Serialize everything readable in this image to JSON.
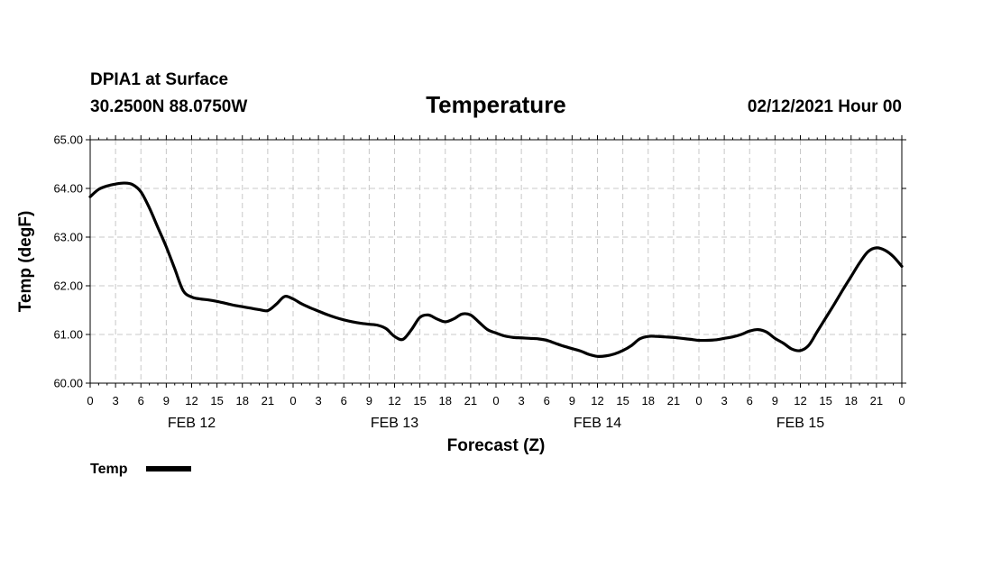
{
  "header": {
    "station": "DPIA1 at Surface",
    "coords": "30.2500N 88.0750W",
    "title": "Temperature",
    "datetime": "02/12/2021 Hour 00"
  },
  "chart_data": {
    "type": "line",
    "title": "Temperature",
    "xlabel": "Forecast (Z)",
    "ylabel": "Temp (degF)",
    "ylim": [
      60.0,
      65.0
    ],
    "xlim": [
      0,
      96
    ],
    "y_ticks": [
      "60.00",
      "61.00",
      "62.00",
      "63.00",
      "64.00",
      "65.00"
    ],
    "x_ticks": [
      "0",
      "3",
      "6",
      "9",
      "12",
      "15",
      "18",
      "21",
      "0",
      "3",
      "6",
      "9",
      "12",
      "15",
      "18",
      "21",
      "0",
      "3",
      "6",
      "9",
      "12",
      "15",
      "18",
      "21",
      "0",
      "3",
      "6",
      "9",
      "12",
      "15",
      "18",
      "21",
      "0"
    ],
    "day_labels": [
      {
        "label": "FEB 12",
        "hour": 12
      },
      {
        "label": "FEB 13",
        "hour": 36
      },
      {
        "label": "FEB 14",
        "hour": 60
      },
      {
        "label": "FEB 15",
        "hour": 84
      }
    ],
    "grid": true,
    "legend": {
      "position": "bottom-left",
      "label": "Temp"
    },
    "series": [
      {
        "name": "Temp",
        "color": "#000000",
        "x": [
          0,
          1,
          2,
          3,
          4,
          5,
          6,
          7,
          8,
          9,
          10,
          11,
          12,
          13,
          14,
          15,
          16,
          17,
          18,
          19,
          20,
          21,
          22,
          23,
          24,
          25,
          26,
          27,
          28,
          29,
          30,
          31,
          32,
          33,
          34,
          35,
          36,
          37,
          38,
          39,
          40,
          41,
          42,
          43,
          44,
          45,
          46,
          47,
          48,
          49,
          50,
          51,
          52,
          53,
          54,
          55,
          56,
          57,
          58,
          59,
          60,
          61,
          62,
          63,
          64,
          65,
          66,
          67,
          68,
          69,
          70,
          71,
          72,
          73,
          74,
          75,
          76,
          77,
          78,
          79,
          80,
          81,
          82,
          83,
          84,
          85,
          86,
          87,
          88,
          89,
          90,
          91,
          92,
          93,
          94,
          95,
          96
        ],
        "values": [
          63.83,
          63.98,
          64.05,
          64.09,
          64.11,
          64.08,
          63.93,
          63.6,
          63.2,
          62.8,
          62.35,
          61.9,
          61.77,
          61.73,
          61.71,
          61.68,
          61.64,
          61.6,
          61.57,
          61.54,
          61.51,
          61.49,
          61.62,
          61.78,
          61.73,
          61.63,
          61.55,
          61.48,
          61.41,
          61.35,
          61.3,
          61.26,
          61.23,
          61.21,
          61.19,
          61.12,
          60.96,
          60.9,
          61.1,
          61.35,
          61.4,
          61.32,
          61.26,
          61.32,
          61.42,
          61.4,
          61.25,
          61.1,
          61.03,
          60.97,
          60.94,
          60.93,
          60.92,
          60.91,
          60.88,
          60.82,
          60.76,
          60.71,
          60.66,
          60.59,
          60.55,
          60.56,
          60.6,
          60.67,
          60.77,
          60.91,
          60.96,
          60.96,
          60.95,
          60.94,
          60.92,
          60.9,
          60.88,
          60.88,
          60.89,
          60.92,
          60.95,
          61.0,
          61.07,
          61.1,
          61.05,
          60.92,
          60.82,
          60.7,
          60.67,
          60.78,
          61.06,
          61.34,
          61.62,
          61.91,
          62.19,
          62.47,
          62.7,
          62.78,
          62.73,
          62.6,
          62.4
        ]
      }
    ]
  }
}
